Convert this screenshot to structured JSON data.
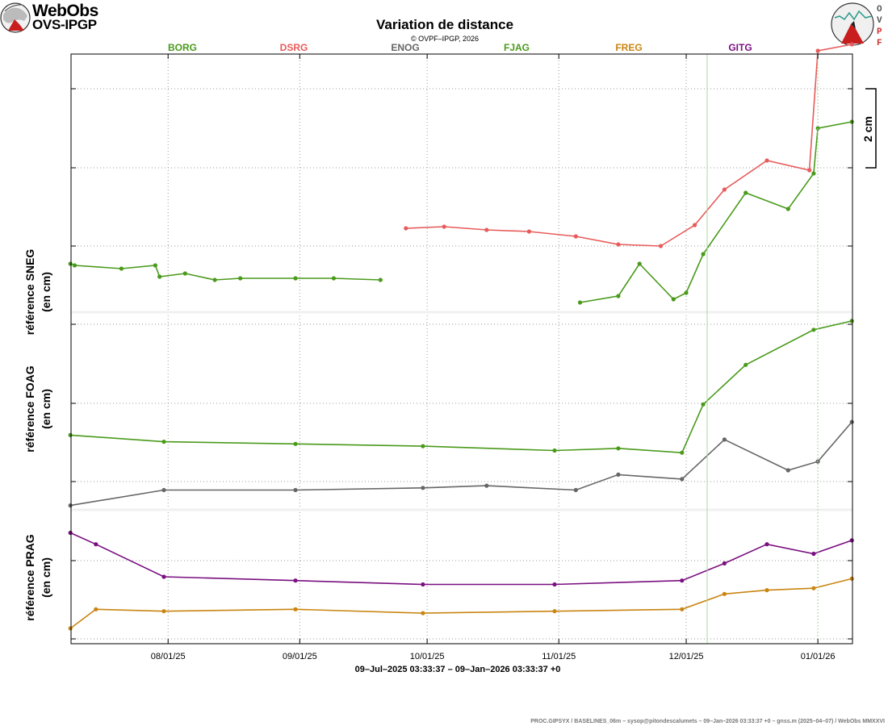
{
  "header": {
    "logo_line1": "WebObs",
    "logo_line2": "OVS-IPGP",
    "title": "Variation de distance",
    "copyright": "© OVPF–IPGP, 2026",
    "right_logo_text": "OVPF"
  },
  "colors": {
    "BORG": "#4a9a1b",
    "DSRG": "#e85b5b",
    "ENOG": "#666666",
    "FJAG": "#4a9a1b",
    "FREG": "#c98512",
    "GITG": "#7a0f80"
  },
  "chart_data": {
    "type": "line",
    "title": "Variation de distance",
    "xlabel": "09–Jul–2025 03:33:37 – 09–Jan–2026 03:33:37 +0",
    "x_ticks": [
      "08/01/25",
      "09/01/25",
      "10/01/25",
      "11/01/25",
      "12/01/25",
      "01/01/26"
    ],
    "x_range": [
      "2025-07-09",
      "2026-01-09"
    ],
    "legend": [
      "BORG",
      "DSRG",
      "ENOG",
      "FJAG",
      "FREG",
      "GITG"
    ],
    "scale_bar": "2 cm",
    "panels": [
      {
        "ylabel": [
          "référence SNEG",
          "(en cm)"
        ],
        "ylim": [
          0,
          8
        ],
        "series": [
          {
            "name": "BORG",
            "x": [
              "2025-07-09",
              "2025-07-10",
              "2025-07-21",
              "2025-07-29",
              "2025-07-30",
              "2025-08-05",
              "2025-08-12",
              "2025-08-18",
              "2025-08-31",
              "2025-09-09",
              "2025-09-20"
            ],
            "values": [
              1.5,
              1.45,
              1.35,
              1.45,
              1.1,
              1.2,
              1.0,
              1.05,
              1.05,
              1.05,
              1.0
            ]
          },
          {
            "name": "DSRG",
            "x": [
              "2025-09-26",
              "2025-10-05",
              "2025-10-15",
              "2025-10-25",
              "2025-11-05",
              "2025-11-15",
              "2025-11-25",
              "2025-12-03",
              "2025-12-10",
              "2025-12-20",
              "2025-12-30",
              "2026-01-01",
              "2026-01-09"
            ],
            "values": [
              2.6,
              2.65,
              2.55,
              2.5,
              2.35,
              2.1,
              2.05,
              2.7,
              3.8,
              4.7,
              4.4,
              8.1,
              8.3
            ]
          },
          {
            "name": "FJAG",
            "x": [
              "2025-11-06",
              "2025-11-15",
              "2025-11-20",
              "2025-11-28",
              "2025-12-01",
              "2025-12-05",
              "2025-12-15",
              "2025-12-25",
              "2025-12-31",
              "2026-01-01",
              "2026-01-09"
            ],
            "values": [
              0.3,
              0.5,
              1.5,
              0.4,
              0.6,
              1.8,
              3.7,
              3.2,
              4.3,
              5.7,
              5.9
            ]
          }
        ]
      },
      {
        "ylabel": [
          "référence FOAG",
          "(en cm)"
        ],
        "ylim": [
          0,
          4.5
        ],
        "series": [
          {
            "name": "FJAG",
            "x": [
              "2025-07-09",
              "2025-07-31",
              "2025-08-31",
              "2025-09-30",
              "2025-10-31",
              "2025-11-15",
              "2025-11-30",
              "2025-12-05",
              "2025-12-15",
              "2025-12-31",
              "2026-01-09"
            ],
            "values": [
              1.7,
              1.55,
              1.5,
              1.45,
              1.35,
              1.4,
              1.3,
              2.4,
              3.3,
              4.1,
              4.3
            ]
          },
          {
            "name": "ENOG",
            "x": [
              "2025-07-09",
              "2025-07-31",
              "2025-08-31",
              "2025-09-30",
              "2025-10-15",
              "2025-11-05",
              "2025-11-15",
              "2025-11-30",
              "2025-12-10",
              "2025-12-25",
              "2026-01-01",
              "2026-01-09"
            ],
            "values": [
              0.1,
              0.45,
              0.45,
              0.5,
              0.55,
              0.45,
              0.8,
              0.7,
              1.6,
              0.9,
              1.1,
              2.0
            ]
          }
        ]
      },
      {
        "ylabel": [
          "référence PRAG",
          "(en cm)"
        ],
        "ylim": [
          0,
          3.5
        ],
        "series": [
          {
            "name": "GITG",
            "x": [
              "2025-07-09",
              "2025-07-15",
              "2025-07-31",
              "2025-08-31",
              "2025-09-30",
              "2025-10-31",
              "2025-11-30",
              "2025-12-10",
              "2025-12-20",
              "2025-12-31",
              "2026-01-09"
            ],
            "values": [
              2.9,
              2.6,
              1.75,
              1.65,
              1.55,
              1.55,
              1.65,
              2.1,
              2.6,
              2.35,
              2.7
            ]
          },
          {
            "name": "FREG",
            "x": [
              "2025-07-09",
              "2025-07-15",
              "2025-07-31",
              "2025-08-31",
              "2025-09-30",
              "2025-10-31",
              "2025-11-30",
              "2025-12-10",
              "2025-12-20",
              "2025-12-31",
              "2026-01-09"
            ],
            "values": [
              0.4,
              0.9,
              0.85,
              0.9,
              0.8,
              0.85,
              0.9,
              1.3,
              1.4,
              1.45,
              1.7
            ]
          }
        ]
      }
    ]
  },
  "footer": "PROC.GIPSYX / BASELINES_06m – sysop@pitondescalumets – 09–Jan–2026 03:33:37 +0 – gnss.m (2025–04–07) / WebObs MMXXVI"
}
